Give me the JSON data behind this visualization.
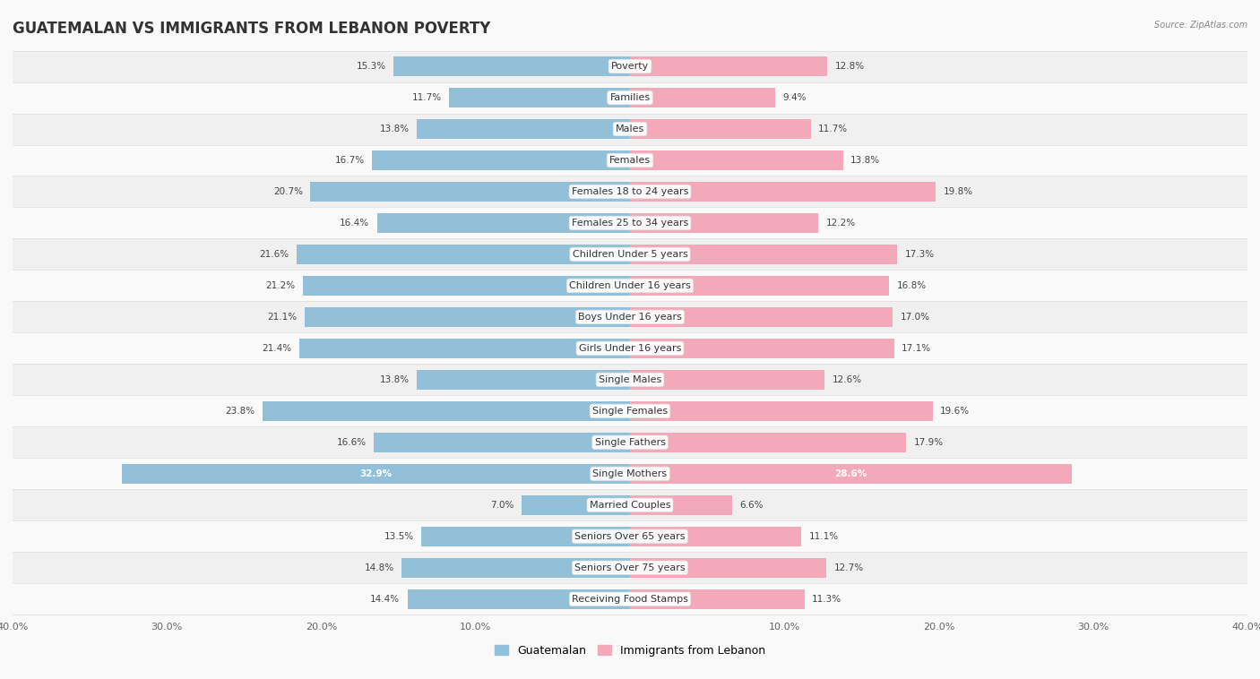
{
  "title": "GUATEMALAN VS IMMIGRANTS FROM LEBANON POVERTY",
  "source": "Source: ZipAtlas.com",
  "categories": [
    "Poverty",
    "Families",
    "Males",
    "Females",
    "Females 18 to 24 years",
    "Females 25 to 34 years",
    "Children Under 5 years",
    "Children Under 16 years",
    "Boys Under 16 years",
    "Girls Under 16 years",
    "Single Males",
    "Single Females",
    "Single Fathers",
    "Single Mothers",
    "Married Couples",
    "Seniors Over 65 years",
    "Seniors Over 75 years",
    "Receiving Food Stamps"
  ],
  "guatemalan": [
    15.3,
    11.7,
    13.8,
    16.7,
    20.7,
    16.4,
    21.6,
    21.2,
    21.1,
    21.4,
    13.8,
    23.8,
    16.6,
    32.9,
    7.0,
    13.5,
    14.8,
    14.4
  ],
  "lebanon": [
    12.8,
    9.4,
    11.7,
    13.8,
    19.8,
    12.2,
    17.3,
    16.8,
    17.0,
    17.1,
    12.6,
    19.6,
    17.9,
    28.6,
    6.6,
    11.1,
    12.7,
    11.3
  ],
  "guatemalan_color": "#92c0d8",
  "lebanon_color": "#f4a9bb",
  "axis_max": 40.0,
  "background_color": "#f9f9f9",
  "row_bg_even": "#f0f0f0",
  "row_bg_odd": "#fafafa",
  "bar_height": 0.62,
  "legend_guatemalan": "Guatemalan",
  "legend_lebanon": "Immigrants from Lebanon",
  "title_fontsize": 12,
  "value_fontsize": 7.5,
  "category_fontsize": 8.0,
  "axis_label_fontsize": 8.0
}
